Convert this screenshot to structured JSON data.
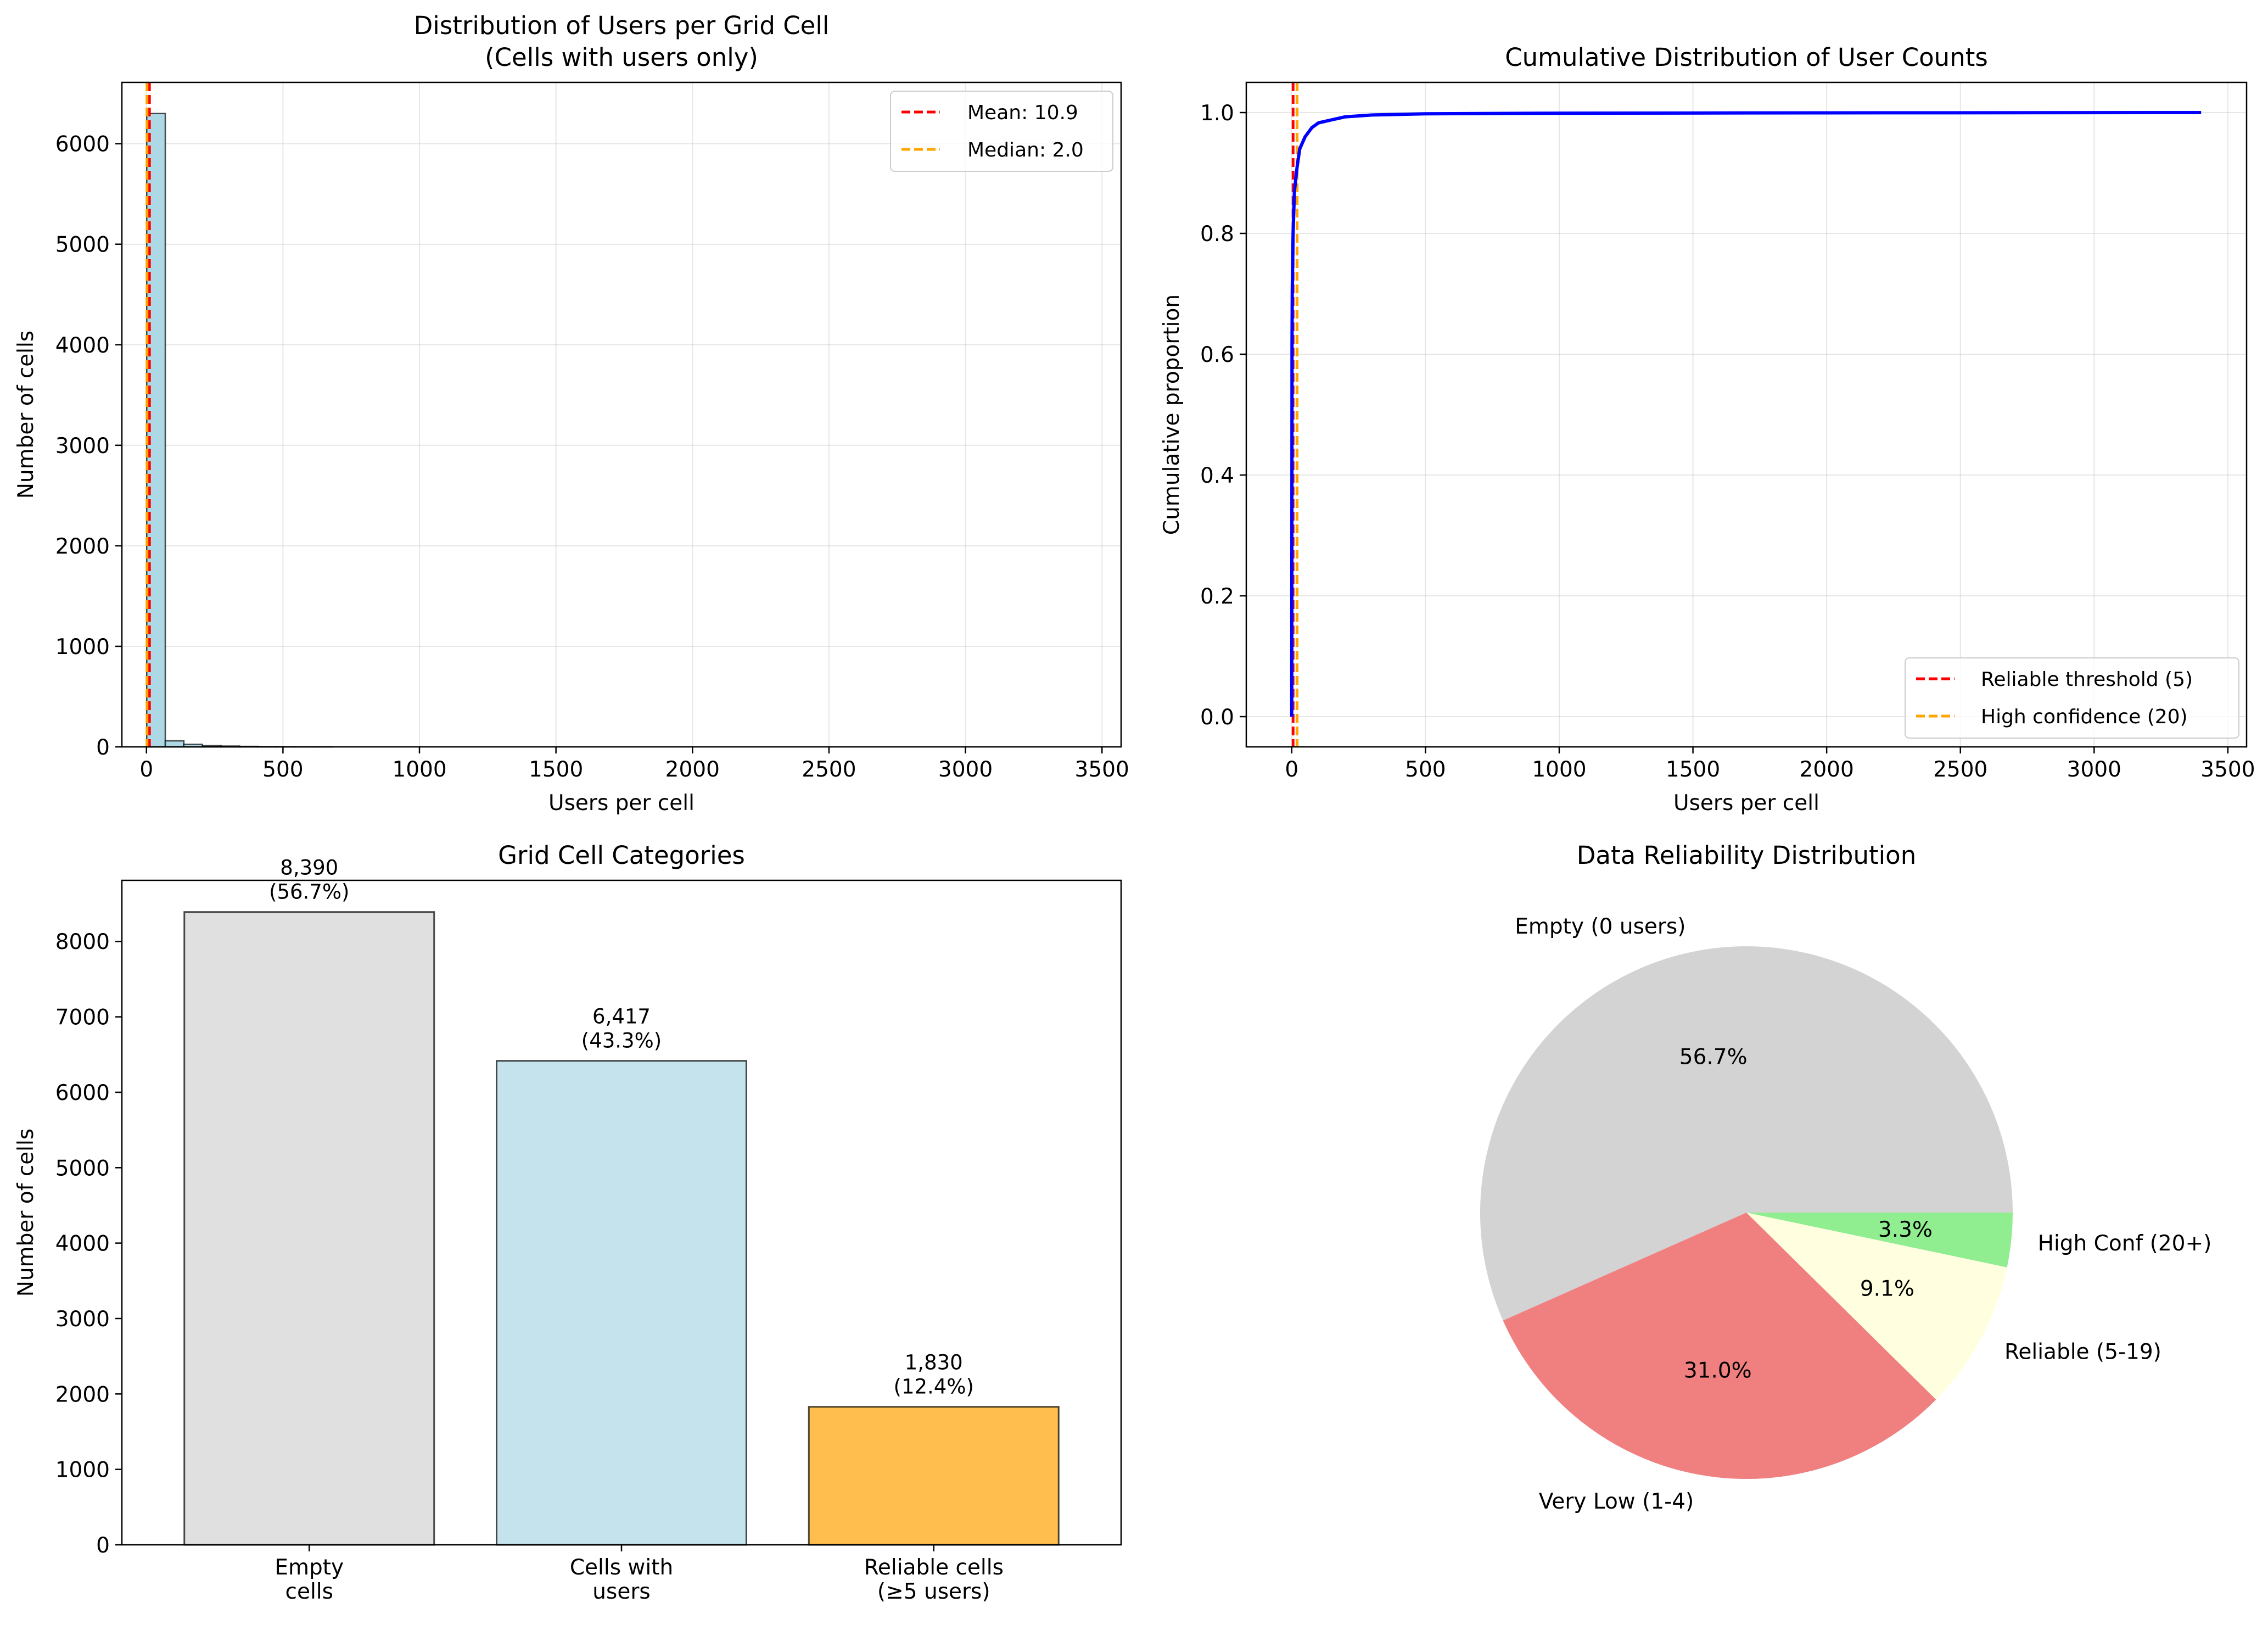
{
  "chart_data": [
    {
      "type": "bar",
      "subtype": "histogram",
      "title": "Distribution of Users per Grid Cell",
      "subtitle": "(Cells with users only)",
      "xlabel": "Users per cell",
      "ylabel": "Number of cells",
      "xlim": [
        -90,
        3570
      ],
      "ylim": [
        0,
        6610
      ],
      "xticks": [
        0,
        500,
        1000,
        1500,
        2000,
        2500,
        3000,
        3500
      ],
      "yticks": [
        0,
        1000,
        2000,
        3000,
        4000,
        5000,
        6000
      ],
      "bin_width": 68,
      "bins": [
        {
          "x0": 1,
          "x1": 69,
          "count": 6300
        },
        {
          "x0": 69,
          "x1": 137,
          "count": 60
        },
        {
          "x0": 137,
          "x1": 205,
          "count": 25
        },
        {
          "x0": 205,
          "x1": 273,
          "count": 12
        },
        {
          "x0": 273,
          "x1": 341,
          "count": 8
        },
        {
          "x0": 341,
          "x1": 409,
          "count": 5
        },
        {
          "x0": 409,
          "x1": 477,
          "count": 3
        },
        {
          "x0": 477,
          "x1": 545,
          "count": 2
        },
        {
          "x0": 545,
          "x1": 613,
          "count": 1
        },
        {
          "x0": 613,
          "x1": 681,
          "count": 1
        }
      ],
      "bar_color": "#add8e6",
      "vlines": [
        {
          "label": "Mean: 10.9",
          "x": 10.9,
          "color": "#ff0000"
        },
        {
          "label": "Median: 2.0",
          "x": 2.0,
          "color": "#ffa500"
        }
      ],
      "legend_position": "upper right",
      "grid": true
    },
    {
      "type": "line",
      "title": "Cumulative Distribution of User Counts",
      "xlabel": "Users per cell",
      "ylabel": "Cumulative proportion",
      "xlim": [
        -170,
        3570
      ],
      "ylim": [
        -0.05,
        1.05
      ],
      "xticks": [
        0,
        500,
        1000,
        1500,
        2000,
        2500,
        3000,
        3500
      ],
      "yticks": [
        0.0,
        0.2,
        0.4,
        0.6,
        0.8,
        1.0
      ],
      "yticklabels": [
        "0.0",
        "0.2",
        "0.4",
        "0.6",
        "0.8",
        "1.0"
      ],
      "series": [
        {
          "color": "#0000ff",
          "points": [
            [
              0,
              0.0
            ],
            [
              1,
              0.62
            ],
            [
              2,
              0.71
            ],
            [
              5,
              0.8
            ],
            [
              10,
              0.87
            ],
            [
              20,
              0.91
            ],
            [
              30,
              0.94
            ],
            [
              50,
              0.96
            ],
            [
              75,
              0.975
            ],
            [
              100,
              0.983
            ],
            [
              200,
              0.993
            ],
            [
              300,
              0.996
            ],
            [
              500,
              0.998
            ],
            [
              1000,
              0.999
            ],
            [
              2000,
              0.9995
            ],
            [
              3400,
              1.0
            ]
          ]
        }
      ],
      "vlines": [
        {
          "label": "Reliable threshold (5)",
          "x": 5,
          "color": "#ff0000"
        },
        {
          "label": "High confidence (20)",
          "x": 20,
          "color": "#ffa500"
        }
      ],
      "legend_position": "lower right",
      "grid": true
    },
    {
      "type": "bar",
      "title": "Grid Cell Categories",
      "ylabel": "Number of cells",
      "categories": [
        "Empty\ncells",
        "Cells with\nusers",
        "Reliable cells\n(≥5 users)"
      ],
      "values": [
        8390,
        6417,
        1830
      ],
      "data_labels": [
        "8,390\n(56.7%)",
        "6,417\n(43.3%)",
        "1,830\n(12.4%)"
      ],
      "colors": [
        "#e0e0e0",
        "#c5e3ed",
        "#ffbe4d"
      ],
      "ylim": [
        0,
        8810
      ],
      "yticks": [
        0,
        1000,
        2000,
        3000,
        4000,
        5000,
        6000,
        7000,
        8000
      ],
      "grid": false
    },
    {
      "type": "pie",
      "title": "Data Reliability Distribution",
      "labels": [
        "Empty (0 users)",
        "Very Low (1-4)",
        "Reliable (5-19)",
        "High Conf (20+)"
      ],
      "values": [
        56.7,
        31.0,
        9.1,
        3.3
      ],
      "pct_labels": [
        "56.7%",
        "31.0%",
        "9.1%",
        "3.3%"
      ],
      "colors": [
        "#d3d3d3",
        "#f08080",
        "#ffffe0",
        "#90ee90"
      ],
      "start_angle": 0,
      "direction": "counterclockwise"
    }
  ]
}
